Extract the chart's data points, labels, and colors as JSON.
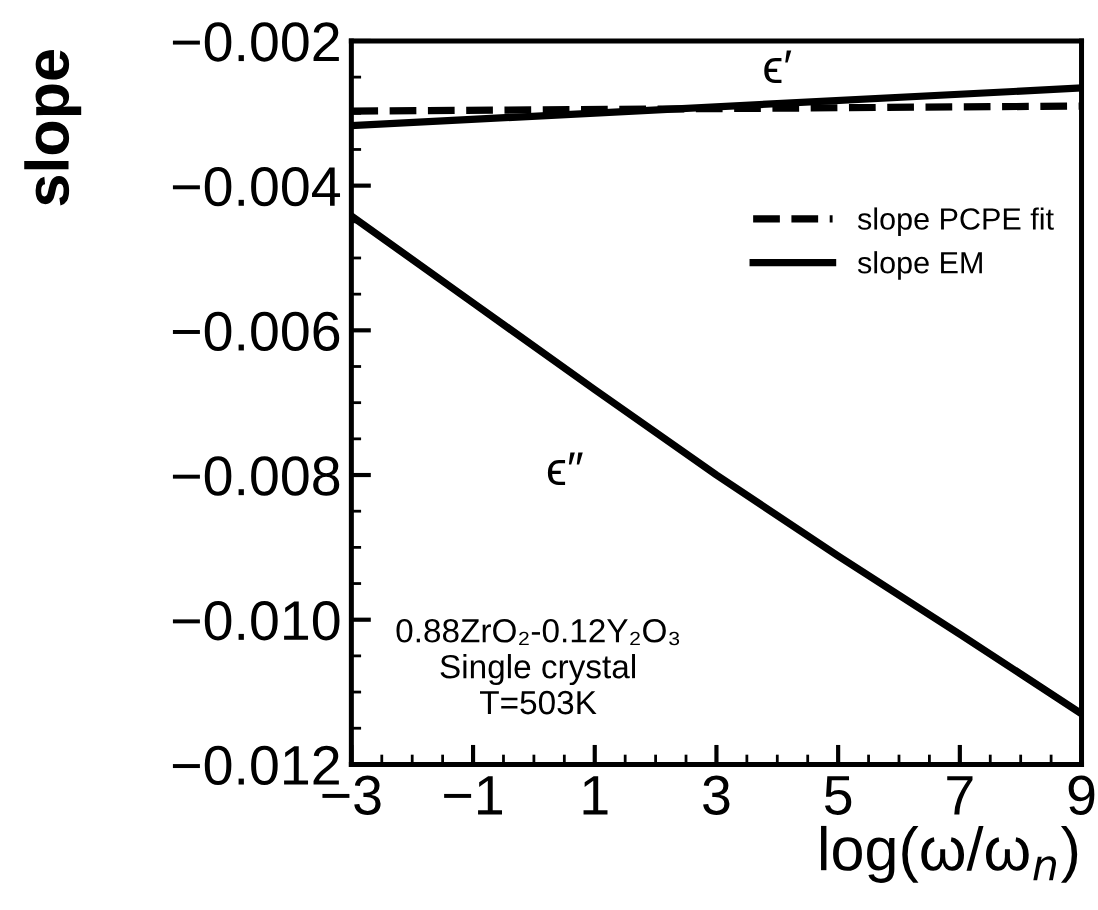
{
  "chart_data": {
    "type": "line",
    "xlabel": "log(ω/ω$_{n}$)",
    "ylabel": "slope",
    "xlim": [
      -3,
      9
    ],
    "xticks": [
      -3,
      -1,
      1,
      3,
      5,
      7,
      9
    ],
    "ylim": [
      -0.012,
      -0.002
    ],
    "yticks": [
      {
        "value": -0.012,
        "label": "−0.012"
      },
      {
        "value": -0.01,
        "label": "−0.010"
      },
      {
        "value": -0.008,
        "label": "−0.008"
      },
      {
        "value": -0.006,
        "label": "−0.006"
      },
      {
        "value": -0.004,
        "label": "−0.004"
      },
      {
        "value": -0.002,
        "label": "−0.002"
      }
    ],
    "grid": false,
    "legend": "right",
    "line_style": "solid",
    "marker": "none",
    "series": [
      {
        "name": "slope PCPE fit",
        "color": "#000000",
        "line_style": "dashed",
        "x": [
          -3,
          9
        ],
        "values": [
          -0.00297,
          -0.0029
        ]
      },
      {
        "name": "slope EM",
        "color": "#000000",
        "x": [
          -3,
          9
        ],
        "values": [
          -0.00317,
          -0.00265
        ]
      },
      {
        "color": "#000000",
        "x": [
          -3,
          -1,
          1,
          3,
          5,
          7,
          9
        ],
        "values": [
          -0.00442,
          -0.00562,
          -0.00682,
          -0.008,
          -0.00912,
          -0.0102,
          -0.0113
        ]
      }
    ],
    "annotations": [
      {
        "text": "ϵ′",
        "x": 4,
        "y": -0.00287
      },
      {
        "text": "ϵ″",
        "x": 1,
        "y": -0.00682
      },
      "0.88ZrO₂-0.12Y₂O₃\nSingle crystal\nT=503K"
    ]
  }
}
